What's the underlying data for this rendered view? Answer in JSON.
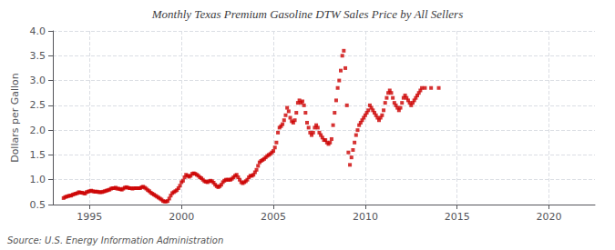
{
  "chart_data": {
    "type": "scatter",
    "title": "Monthly Texas Premium Gasoline DTW Sales Price by All Sellers",
    "ylabel": "Dollars per Gallon",
    "annotation": "Source: U.S. Energy Information Administration",
    "color": "#cc0000",
    "marker": "square",
    "grid": true,
    "xlim": [
      1993.0,
      2022.5
    ],
    "xticks": [
      1995,
      2000,
      2005,
      2010,
      2015,
      2020
    ],
    "ylim": [
      0.5,
      4.0
    ],
    "yticks": [
      0.5,
      {
        "value": 1.0,
        "label": "1.0"
      },
      1.5,
      {
        "value": 2.0,
        "label": "2.0"
      },
      2.5,
      {
        "value": 3.0,
        "label": "3.0"
      },
      3.5,
      {
        "value": 4.0,
        "label": "4.0"
      }
    ],
    "x": [
      1993.583,
      1993.667,
      1993.75,
      1993.833,
      1993.917,
      1994.0,
      1994.083,
      1994.167,
      1994.25,
      1994.333,
      1994.417,
      1994.5,
      1994.583,
      1994.667,
      1994.75,
      1994.833,
      1994.917,
      1995.0,
      1995.083,
      1995.167,
      1995.25,
      1995.333,
      1995.417,
      1995.5,
      1995.583,
      1995.667,
      1995.75,
      1995.833,
      1995.917,
      1996.0,
      1996.083,
      1996.167,
      1996.25,
      1996.333,
      1996.417,
      1996.5,
      1996.583,
      1996.667,
      1996.75,
      1996.833,
      1996.917,
      1997.0,
      1997.083,
      1997.167,
      1997.25,
      1997.333,
      1997.417,
      1997.5,
      1997.583,
      1997.667,
      1997.75,
      1997.833,
      1997.917,
      1998.0,
      1998.083,
      1998.167,
      1998.25,
      1998.333,
      1998.417,
      1998.5,
      1998.583,
      1998.667,
      1998.75,
      1998.833,
      1998.917,
      1999.0,
      1999.083,
      1999.167,
      1999.25,
      1999.333,
      1999.417,
      1999.5,
      1999.583,
      1999.667,
      1999.75,
      1999.833,
      1999.917,
      2000.0,
      2000.083,
      2000.167,
      2000.25,
      2000.333,
      2000.417,
      2000.5,
      2000.583,
      2000.667,
      2000.75,
      2000.833,
      2000.917,
      2001.0,
      2001.083,
      2001.167,
      2001.25,
      2001.333,
      2001.417,
      2001.5,
      2001.583,
      2001.667,
      2001.75,
      2001.833,
      2001.917,
      2002.0,
      2002.083,
      2002.167,
      2002.25,
      2002.333,
      2002.417,
      2002.5,
      2002.583,
      2002.667,
      2002.75,
      2002.833,
      2002.917,
      2003.0,
      2003.083,
      2003.167,
      2003.25,
      2003.333,
      2003.417,
      2003.5,
      2003.583,
      2003.667,
      2003.75,
      2003.833,
      2003.917,
      2004.0,
      2004.083,
      2004.167,
      2004.25,
      2004.333,
      2004.417,
      2004.5,
      2004.583,
      2004.667,
      2004.75,
      2004.833,
      2004.917,
      2005.0,
      2005.083,
      2005.167,
      2005.25,
      2005.333,
      2005.417,
      2005.5,
      2005.583,
      2005.667,
      2005.75,
      2005.833,
      2005.917,
      2006.0,
      2006.083,
      2006.167,
      2006.25,
      2006.333,
      2006.417,
      2006.5,
      2006.583,
      2006.667,
      2006.75,
      2006.833,
      2006.917,
      2007.0,
      2007.083,
      2007.167,
      2007.25,
      2007.333,
      2007.417,
      2007.5,
      2007.583,
      2007.667,
      2007.75,
      2007.833,
      2007.917,
      2008.0,
      2008.083,
      2008.167,
      2008.25,
      2008.333,
      2008.417,
      2008.5,
      2008.583,
      2008.667,
      2008.75,
      2008.833,
      2008.917,
      2009.0,
      2009.083,
      2009.167,
      2009.25,
      2009.333,
      2009.417,
      2009.5,
      2009.583,
      2009.667,
      2009.75,
      2009.833,
      2009.917,
      2010.0,
      2010.083,
      2010.167,
      2010.25,
      2010.333,
      2010.417,
      2010.5,
      2010.583,
      2010.667,
      2010.75,
      2010.833,
      2010.917,
      2011.0,
      2011.083,
      2011.167,
      2011.25,
      2011.333,
      2011.417,
      2011.5,
      2011.583,
      2011.667,
      2011.75,
      2011.833,
      2011.917,
      2012.0,
      2012.083,
      2012.167,
      2012.25,
      2012.333,
      2012.417,
      2012.5,
      2012.583,
      2012.667,
      2012.75,
      2012.833,
      2012.917,
      2013.0,
      2013.083,
      2013.25,
      2013.583,
      2014.0
    ],
    "values": [
      0.63,
      0.65,
      0.66,
      0.67,
      0.68,
      0.68,
      0.7,
      0.71,
      0.72,
      0.73,
      0.75,
      0.74,
      0.74,
      0.73,
      0.72,
      0.75,
      0.76,
      0.77,
      0.78,
      0.77,
      0.76,
      0.76,
      0.76,
      0.75,
      0.75,
      0.75,
      0.76,
      0.77,
      0.78,
      0.79,
      0.8,
      0.82,
      0.83,
      0.83,
      0.84,
      0.82,
      0.82,
      0.81,
      0.8,
      0.82,
      0.84,
      0.85,
      0.84,
      0.83,
      0.83,
      0.82,
      0.83,
      0.83,
      0.83,
      0.83,
      0.83,
      0.85,
      0.86,
      0.84,
      0.82,
      0.79,
      0.77,
      0.74,
      0.72,
      0.7,
      0.68,
      0.66,
      0.64,
      0.62,
      0.6,
      0.57,
      0.56,
      0.56,
      0.57,
      0.62,
      0.68,
      0.73,
      0.75,
      0.77,
      0.79,
      0.83,
      0.88,
      0.95,
      0.98,
      1.05,
      1.1,
      1.08,
      1.06,
      1.08,
      1.12,
      1.13,
      1.12,
      1.1,
      1.08,
      1.05,
      1.03,
      1.0,
      0.97,
      0.96,
      0.95,
      0.97,
      0.98,
      0.97,
      0.94,
      0.9,
      0.87,
      0.85,
      0.87,
      0.9,
      0.95,
      0.98,
      1.0,
      1.0,
      1.0,
      1.0,
      1.02,
      1.05,
      1.08,
      1.1,
      1.05,
      1.0,
      0.95,
      0.93,
      0.95,
      0.97,
      1.0,
      1.05,
      1.08,
      1.08,
      1.1,
      1.15,
      1.2,
      1.28,
      1.35,
      1.38,
      1.4,
      1.42,
      1.45,
      1.48,
      1.5,
      1.52,
      1.55,
      1.58,
      1.65,
      1.75,
      1.95,
      2.05,
      2.08,
      2.12,
      2.2,
      2.3,
      2.45,
      2.38,
      2.25,
      2.18,
      2.15,
      2.2,
      2.35,
      2.55,
      2.6,
      2.55,
      2.58,
      2.5,
      2.35,
      2.15,
      2.05,
      1.95,
      1.9,
      1.95,
      2.05,
      2.1,
      2.05,
      1.95,
      1.9,
      1.85,
      1.8,
      1.8,
      1.75,
      1.72,
      1.75,
      1.82,
      2.1,
      2.35,
      2.6,
      2.85,
      3.0,
      3.2,
      3.5,
      3.6,
      3.25,
      2.5,
      1.55,
      1.3,
      1.45,
      1.6,
      1.75,
      1.9,
      2.0,
      2.1,
      2.15,
      2.2,
      2.25,
      2.3,
      2.35,
      2.4,
      2.5,
      2.45,
      2.4,
      2.35,
      2.3,
      2.25,
      2.2,
      2.25,
      2.3,
      2.4,
      2.55,
      2.65,
      2.75,
      2.8,
      2.75,
      2.65,
      2.55,
      2.5,
      2.45,
      2.4,
      2.45,
      2.55,
      2.65,
      2.7,
      2.65,
      2.6,
      2.55,
      2.5,
      2.55,
      2.6,
      2.65,
      2.7,
      2.75,
      2.8,
      2.85,
      2.85,
      2.85,
      2.85
    ]
  }
}
